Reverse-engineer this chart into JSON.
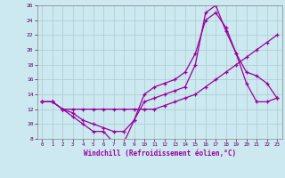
{
  "xlabel": "Windchill (Refroidissement éolien,°C)",
  "bg_color": "#cce8f0",
  "line_color": "#990099",
  "grid_color": "#aacccc",
  "xlim": [
    -0.5,
    23.5
  ],
  "ylim": [
    8,
    26
  ],
  "xticks": [
    0,
    1,
    2,
    3,
    4,
    5,
    6,
    7,
    8,
    9,
    10,
    11,
    12,
    13,
    14,
    15,
    16,
    17,
    18,
    19,
    20,
    21,
    22,
    23
  ],
  "yticks": [
    8,
    10,
    12,
    14,
    16,
    18,
    20,
    22,
    24,
    26
  ],
  "line1_x": [
    0,
    1,
    2,
    3,
    4,
    5,
    6,
    7,
    8,
    9,
    10,
    11,
    12,
    13,
    14,
    15,
    16,
    17,
    18,
    19,
    20,
    21,
    22,
    23
  ],
  "line1_y": [
    13,
    13,
    12,
    11,
    10,
    9,
    9,
    7.5,
    7.5,
    10.5,
    13,
    13.5,
    14,
    14.5,
    15,
    18,
    25,
    26,
    22.5,
    19.5,
    15.5,
    13,
    13,
    13.5
  ],
  "line2_x": [
    0,
    1,
    2,
    3,
    4,
    5,
    6,
    7,
    8,
    9,
    10,
    11,
    12,
    13,
    14,
    15,
    16,
    17,
    18,
    19,
    20,
    21,
    22,
    23
  ],
  "line2_y": [
    13,
    13,
    12,
    11.5,
    10.5,
    10,
    9.5,
    9,
    9,
    10.5,
    14,
    15,
    15.5,
    16,
    17,
    19.5,
    24,
    25,
    23,
    19.5,
    17,
    16.5,
    15.5,
    13.5
  ],
  "line3_x": [
    0,
    1,
    2,
    3,
    4,
    5,
    6,
    7,
    8,
    9,
    10,
    11,
    12,
    13,
    14,
    15,
    16,
    17,
    18,
    19,
    20,
    21,
    22,
    23
  ],
  "line3_y": [
    13,
    13,
    12,
    12,
    12,
    12,
    12,
    12,
    12,
    12,
    12,
    12,
    12.5,
    13,
    13.5,
    14,
    15,
    16,
    17,
    18,
    19,
    20,
    21,
    22
  ]
}
